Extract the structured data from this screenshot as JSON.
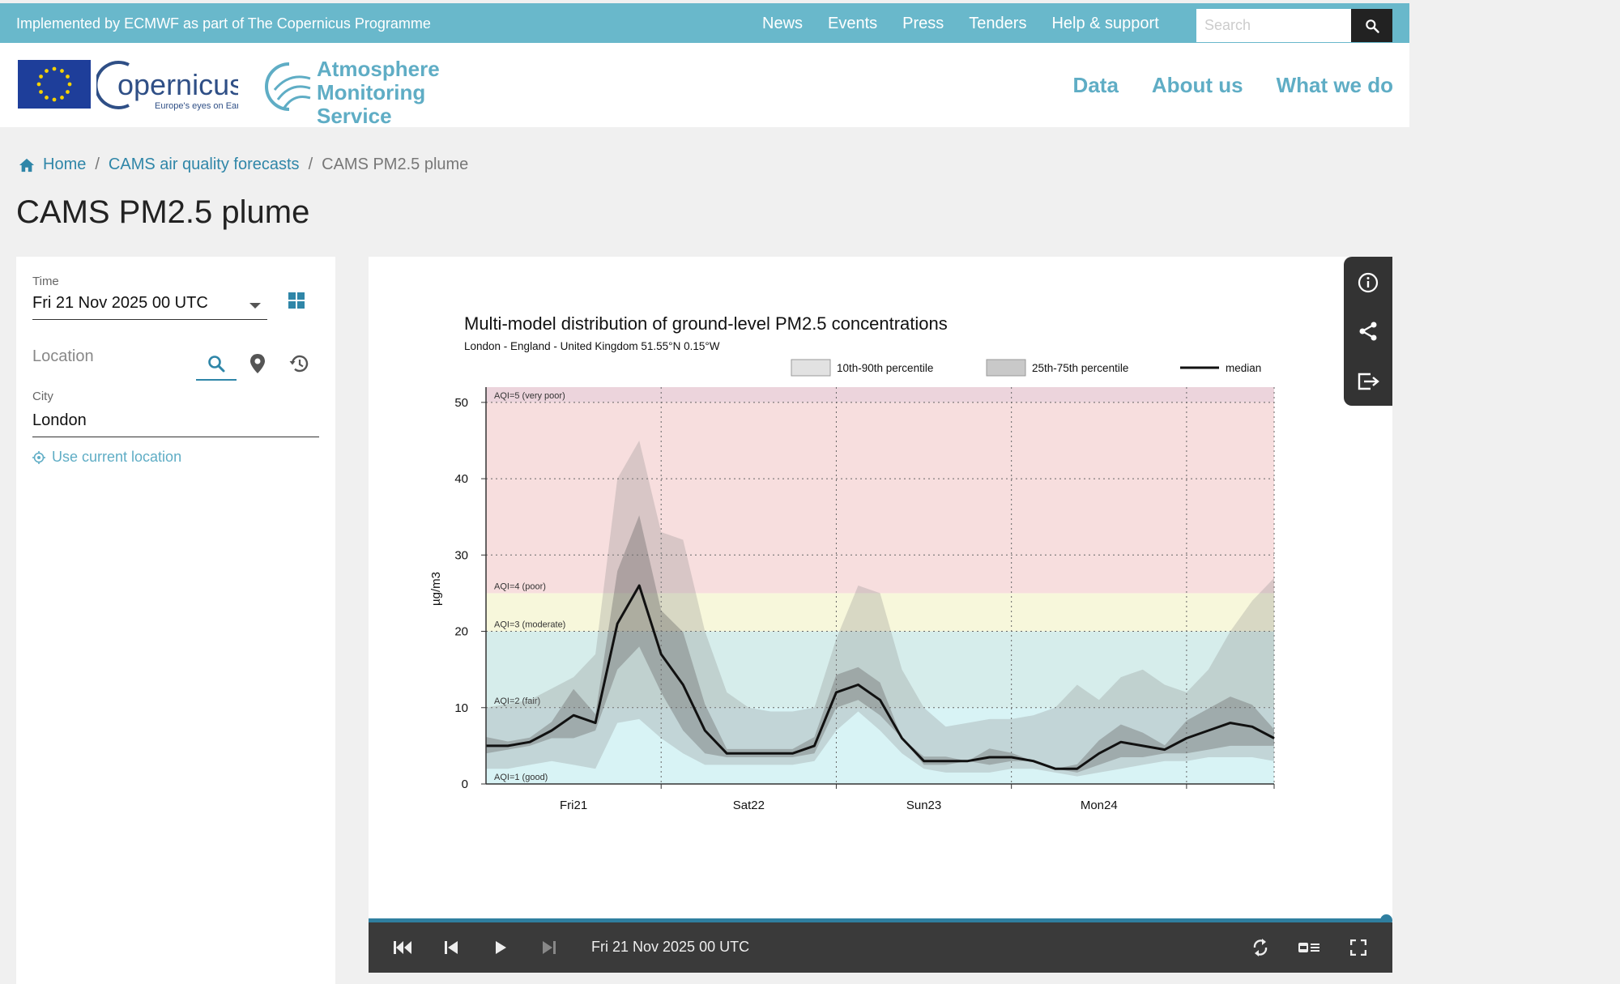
{
  "topbar": {
    "implemented_text": "Implemented by ECMWF as part of The Copernicus Programme",
    "nav": [
      "News",
      "Events",
      "Press",
      "Tenders",
      "Help & support"
    ],
    "search_placeholder": "Search"
  },
  "header": {
    "copernicus_name": "opernicus",
    "copernicus_tagline": "Europe's eyes on Earth",
    "cams_line1": "Atmosphere",
    "cams_line2": "Monitoring Service",
    "nav": [
      "Data",
      "About us",
      "What we do"
    ]
  },
  "breadcrumb": {
    "home": "Home",
    "level1": "CAMS air quality forecasts",
    "current": "CAMS PM2.5 plume"
  },
  "page_title": "CAMS PM2.5 plume",
  "sidebar": {
    "time_label": "Time",
    "time_value": "Fri 21 Nov 2025 00 UTC",
    "location_label": "Location",
    "city_label": "City",
    "city_value": "London",
    "use_current_location": "Use current location"
  },
  "player": {
    "time": "Fri 21 Nov 2025 00 UTC",
    "progress": 1.0
  },
  "colors": {
    "accent": "#5fadc5",
    "link": "#2f86a8",
    "topbar": "#69b8cb",
    "dark": "#333333"
  },
  "icons": {
    "side_tools": [
      "info-icon",
      "share-icon",
      "export-icon"
    ],
    "player": [
      "skip-first-icon",
      "step-back-icon",
      "play-icon",
      "skip-last-icon",
      "loop-icon",
      "legend-toggle-icon",
      "fullscreen-icon"
    ]
  },
  "chart_data": {
    "type": "area",
    "title": "Multi-model distribution of ground-level PM2.5 concentrations",
    "subtitle": "London - England - United Kingdom 51.55°N 0.15°W",
    "ylabel": "µg/m3",
    "xlabel": "",
    "ylim": [
      0,
      52
    ],
    "xlim": [
      -12,
      96
    ],
    "grid": true,
    "legend_placement": "top",
    "legend": [
      "10th-90th percentile",
      "25th-75th percentile",
      "median"
    ],
    "yticks": [
      0,
      10,
      20,
      30,
      40,
      50
    ],
    "x_ticks": [
      {
        "x": 0,
        "label": "Fri21"
      },
      {
        "x": 24,
        "label": "Sat22"
      },
      {
        "x": 48,
        "label": "Sun23"
      },
      {
        "x": 72,
        "label": "Mon24"
      }
    ],
    "aqi_bands": [
      {
        "label": "AQI=1 (good)",
        "min": 0,
        "max": 10,
        "color": "#d8f3f5"
      },
      {
        "label": "AQI=2 (fair)",
        "min": 10,
        "max": 20,
        "color": "#d6edeb"
      },
      {
        "label": "AQI=3 (moderate)",
        "min": 20,
        "max": 25,
        "color": "#f7f7db"
      },
      {
        "label": "AQI=4 (poor)",
        "min": 25,
        "max": 50,
        "color": "#f7dede"
      },
      {
        "label": "AQI=5 (very poor)",
        "min": 50,
        "max": 52,
        "color": "#ecd4dc"
      }
    ],
    "x": [
      -12,
      -9,
      -6,
      -3,
      0,
      3,
      6,
      9,
      12,
      15,
      18,
      21,
      24,
      27,
      30,
      33,
      36,
      39,
      42,
      45,
      48,
      51,
      54,
      57,
      60,
      63,
      66,
      69,
      72,
      75,
      78,
      81,
      84,
      87,
      90,
      93,
      96
    ],
    "series": [
      {
        "name": "10th-90th percentile",
        "lower": [
          2,
          2,
          2.5,
          3,
          2.5,
          2,
          8,
          8.5,
          6,
          4,
          2.5,
          2.5,
          2.5,
          2.5,
          2.5,
          3,
          7,
          9.5,
          7,
          4,
          2,
          1.5,
          1.5,
          1.5,
          2,
          2,
          1.5,
          1,
          1.5,
          2,
          2.5,
          3,
          3,
          3.5,
          3.5,
          3.5,
          3
        ],
        "upper": [
          10,
          10.5,
          11,
          12.5,
          14,
          17,
          40,
          45,
          33,
          32,
          20,
          12,
          10,
          9.5,
          9.5,
          10,
          19,
          26,
          25,
          15,
          10,
          7.5,
          8,
          8.5,
          8.5,
          9,
          10,
          13,
          11,
          14,
          15,
          13,
          12,
          15,
          20,
          24,
          27
        ]
      },
      {
        "name": "25th-75th percentile",
        "lower": [
          4,
          4.5,
          5,
          6,
          6,
          7,
          15,
          18,
          12,
          7,
          4,
          3.5,
          3.5,
          3.5,
          3.5,
          4,
          10,
          11,
          9,
          6,
          2.5,
          2.5,
          3,
          2.5,
          3,
          3,
          2,
          1.5,
          2.5,
          3.5,
          3.5,
          4,
          4,
          4.5,
          5,
          5,
          5
        ]
      },
      {
        "name": "median",
        "values": [
          5,
          5,
          5.5,
          7,
          9,
          8,
          21,
          26,
          17,
          13,
          7,
          4,
          4,
          4,
          4,
          5,
          12,
          13,
          11,
          6,
          3,
          3,
          3,
          3.5,
          3.5,
          3,
          2,
          2,
          4,
          5.5,
          5,
          4.5,
          6,
          7,
          8,
          7.5,
          6
        ]
      }
    ]
  }
}
